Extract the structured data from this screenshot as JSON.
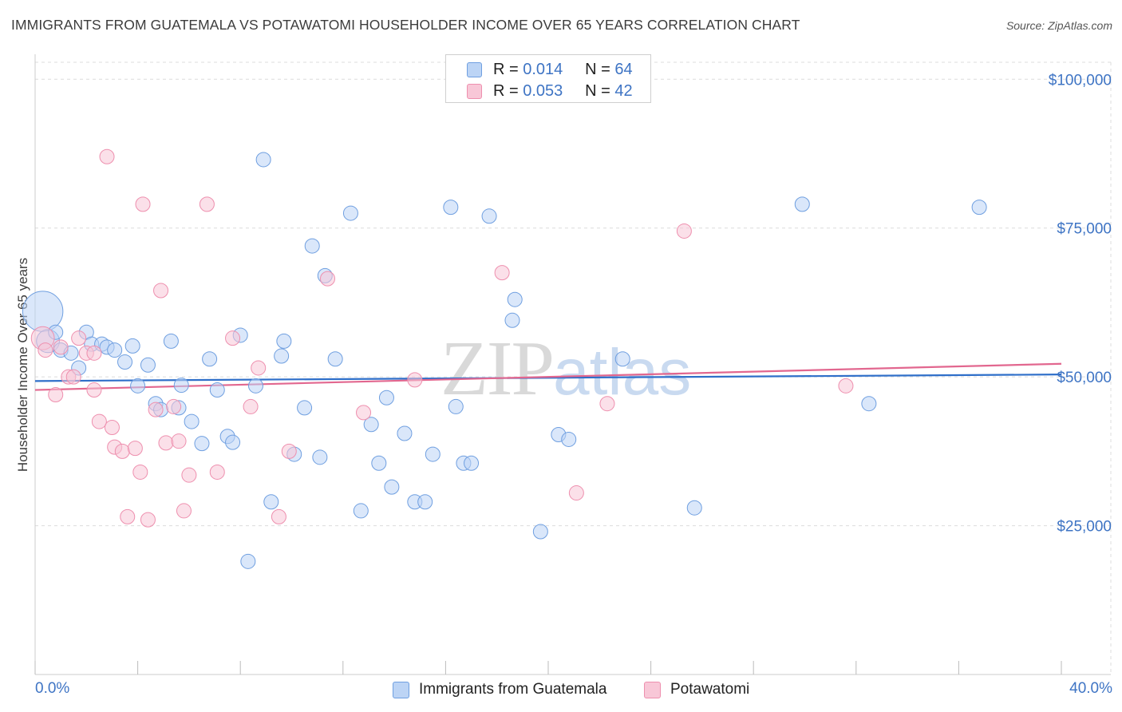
{
  "title": "IMMIGRANTS FROM GUATEMALA VS POTAWATOMI HOUSEHOLDER INCOME OVER 65 YEARS CORRELATION CHART",
  "source": "Source: ZipAtlas.com",
  "watermark": {
    "zip": "ZIP",
    "atlas": "atlas"
  },
  "colors": {
    "blue": "#6f9fe0",
    "blue_fill": "#bcd4f5",
    "blue_line": "#2f6fc9",
    "pink": "#ee8fae",
    "pink_fill": "#f8c7d7",
    "pink_line": "#e2678f",
    "tick_text": "#3e74c4",
    "grid": "#dcdcdc"
  },
  "legend": {
    "rows": [
      {
        "r_label": "R = ",
        "r_value": "0.014",
        "n_label": "N = ",
        "n_value": "64"
      },
      {
        "r_label": "R = ",
        "r_value": "0.053",
        "n_label": "N = ",
        "n_value": "42"
      }
    ]
  },
  "bottom_legend": {
    "series1": "Immigrants from Guatemala",
    "series2": "Potawatomi"
  },
  "chart_data": {
    "type": "scatter",
    "title": "IMMIGRANTS FROM GUATEMALA VS POTAWATOMI HOUSEHOLDER INCOME OVER 65 YEARS CORRELATION CHART",
    "xlabel": "",
    "ylabel": "Householder Income Over 65 years",
    "xlim": [
      0,
      40
    ],
    "ylim": [
      0,
      105000
    ],
    "x_tick_labels": [
      "0.0%",
      "40.0%"
    ],
    "x_minor_ticks": [
      0,
      4,
      8,
      12,
      16,
      20,
      24,
      28,
      32,
      36,
      40
    ],
    "y_ticks": [
      25000,
      50000,
      75000,
      100000
    ],
    "y_tick_labels": [
      "$25,000",
      "$50,000",
      "$75,000",
      "$100,000"
    ],
    "grid": true,
    "legend_position": "top-center",
    "series": [
      {
        "name": "Immigrants from Guatemala",
        "R": 0.014,
        "N": 64,
        "trend": {
          "x": [
            0,
            40
          ],
          "y": [
            49300,
            50400
          ]
        },
        "points": [
          [
            0.3,
            61000,
            1.0
          ],
          [
            0.5,
            56000,
            0.6
          ],
          [
            0.8,
            57500,
            0.4
          ],
          [
            1.0,
            54500,
            0.4
          ],
          [
            1.4,
            54000,
            0.4
          ],
          [
            1.7,
            51500,
            0.4
          ],
          [
            2.0,
            57500,
            0.4
          ],
          [
            2.2,
            55500,
            0.4
          ],
          [
            2.6,
            55500,
            0.4
          ],
          [
            2.8,
            55000,
            0.4
          ],
          [
            3.1,
            54500,
            0.4
          ],
          [
            3.5,
            52500,
            0.4
          ],
          [
            3.8,
            55200,
            0.4
          ],
          [
            4.0,
            48500,
            0.4
          ],
          [
            4.4,
            52000,
            0.4
          ],
          [
            4.7,
            45500,
            0.4
          ],
          [
            4.9,
            44500,
            0.4
          ],
          [
            5.3,
            56000,
            0.4
          ],
          [
            5.6,
            44800,
            0.4
          ],
          [
            5.7,
            48600,
            0.4
          ],
          [
            6.1,
            42500,
            0.4
          ],
          [
            6.5,
            38800,
            0.4
          ],
          [
            6.8,
            53000,
            0.4
          ],
          [
            7.1,
            47800,
            0.4
          ],
          [
            7.5,
            40000,
            0.4
          ],
          [
            7.7,
            39000,
            0.4
          ],
          [
            8.0,
            57000,
            0.4
          ],
          [
            8.3,
            19000,
            0.4
          ],
          [
            8.6,
            48500,
            0.4
          ],
          [
            8.9,
            86500,
            0.4
          ],
          [
            9.2,
            29000,
            0.4
          ],
          [
            9.6,
            53500,
            0.4
          ],
          [
            9.7,
            56000,
            0.4
          ],
          [
            10.1,
            37000,
            0.4
          ],
          [
            10.5,
            44800,
            0.4
          ],
          [
            10.8,
            72000,
            0.4
          ],
          [
            11.1,
            36500,
            0.4
          ],
          [
            11.3,
            67000,
            0.4
          ],
          [
            11.7,
            53000,
            0.4
          ],
          [
            12.3,
            77500,
            0.4
          ],
          [
            12.7,
            27500,
            0.4
          ],
          [
            13.1,
            42000,
            0.4
          ],
          [
            13.4,
            35500,
            0.4
          ],
          [
            13.7,
            46500,
            0.4
          ],
          [
            13.9,
            31500,
            0.4
          ],
          [
            14.4,
            40500,
            0.4
          ],
          [
            14.8,
            29000,
            0.4
          ],
          [
            15.2,
            29000,
            0.4
          ],
          [
            15.5,
            37000,
            0.4
          ],
          [
            16.2,
            78500,
            0.4
          ],
          [
            16.4,
            45000,
            0.4
          ],
          [
            16.7,
            35500,
            0.4
          ],
          [
            17.0,
            35500,
            0.4
          ],
          [
            17.7,
            77000,
            0.4
          ],
          [
            18.6,
            59500,
            0.4
          ],
          [
            18.7,
            63000,
            0.4
          ],
          [
            19.7,
            24000,
            0.4
          ],
          [
            20.4,
            40300,
            0.4
          ],
          [
            20.8,
            39500,
            0.4
          ],
          [
            22.9,
            53000,
            0.4
          ],
          [
            25.7,
            28000,
            0.4
          ],
          [
            29.9,
            79000,
            0.4
          ],
          [
            32.5,
            45500,
            0.4
          ],
          [
            36.8,
            78500,
            0.4
          ]
        ]
      },
      {
        "name": "Potawatomi",
        "R": 0.053,
        "N": 42,
        "trend": {
          "x": [
            0,
            40
          ],
          "y": [
            47800,
            52200
          ]
        },
        "points": [
          [
            0.3,
            56500,
            0.6
          ],
          [
            0.4,
            54500,
            0.4
          ],
          [
            0.8,
            47000,
            0.4
          ],
          [
            1.0,
            55000,
            0.4
          ],
          [
            1.3,
            50000,
            0.4
          ],
          [
            1.5,
            50000,
            0.4
          ],
          [
            1.7,
            56500,
            0.4
          ],
          [
            2.0,
            54000,
            0.4
          ],
          [
            2.3,
            54000,
            0.4
          ],
          [
            2.3,
            47800,
            0.4
          ],
          [
            2.5,
            42500,
            0.4
          ],
          [
            2.8,
            87000,
            0.4
          ],
          [
            3.0,
            41500,
            0.4
          ],
          [
            3.1,
            38200,
            0.4
          ],
          [
            3.4,
            37500,
            0.4
          ],
          [
            3.6,
            26500,
            0.4
          ],
          [
            3.9,
            38000,
            0.4
          ],
          [
            4.1,
            34000,
            0.4
          ],
          [
            4.2,
            79000,
            0.4
          ],
          [
            4.4,
            26000,
            0.4
          ],
          [
            4.7,
            44500,
            0.4
          ],
          [
            4.9,
            64500,
            0.4
          ],
          [
            5.1,
            38900,
            0.4
          ],
          [
            5.4,
            45000,
            0.4
          ],
          [
            5.6,
            39200,
            0.4
          ],
          [
            5.8,
            27500,
            0.4
          ],
          [
            6.0,
            33500,
            0.4
          ],
          [
            6.7,
            79000,
            0.4
          ],
          [
            7.1,
            34000,
            0.4
          ],
          [
            7.7,
            56500,
            0.4
          ],
          [
            8.4,
            45000,
            0.4
          ],
          [
            8.7,
            51500,
            0.4
          ],
          [
            9.5,
            26500,
            0.4
          ],
          [
            9.9,
            37500,
            0.4
          ],
          [
            11.4,
            66500,
            0.4
          ],
          [
            12.8,
            44000,
            0.4
          ],
          [
            14.8,
            49500,
            0.4
          ],
          [
            18.2,
            67500,
            0.4
          ],
          [
            21.1,
            30500,
            0.4
          ],
          [
            22.3,
            45500,
            0.4
          ],
          [
            25.3,
            74500,
            0.4
          ],
          [
            31.6,
            48500,
            0.4
          ]
        ]
      }
    ]
  }
}
